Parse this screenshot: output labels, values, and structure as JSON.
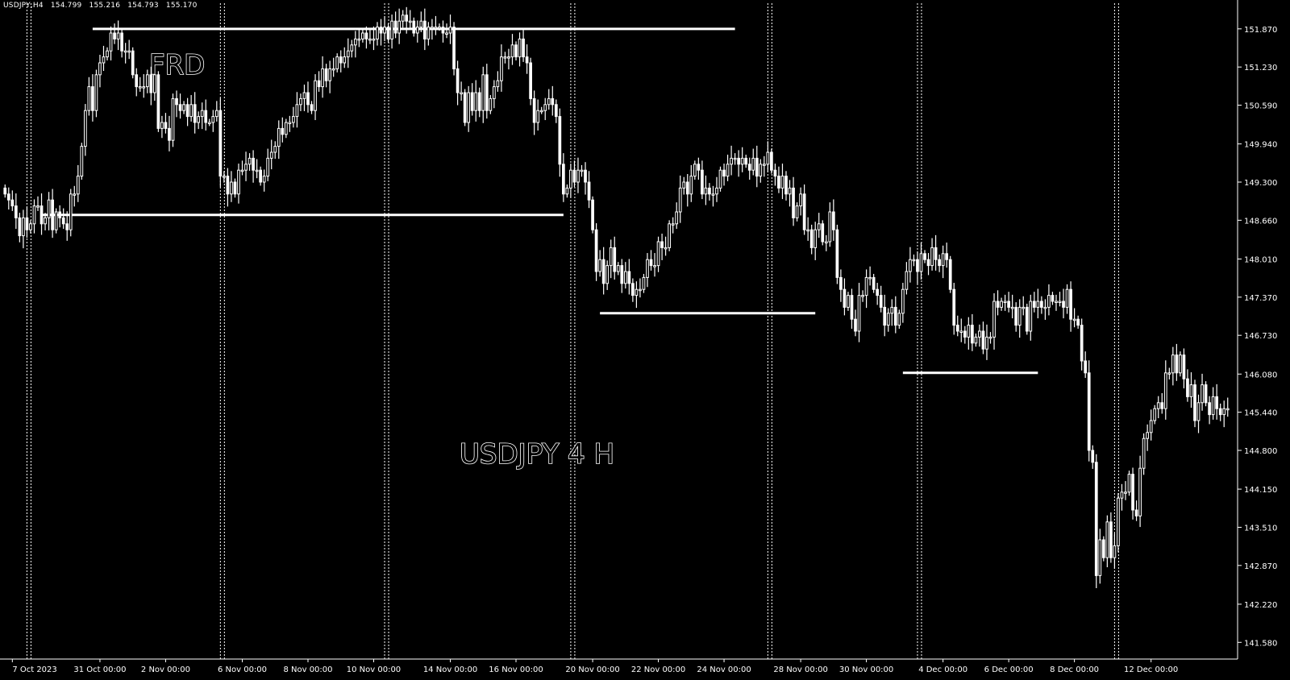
{
  "header": {
    "symbol": "USDJPY,H4",
    "ohlc": [
      "154.799",
      "155.216",
      "154.793",
      "155.170"
    ]
  },
  "annotations": {
    "label_frd": "FRD",
    "label_main": "USDJPY 4 H"
  },
  "colors": {
    "background": "#000000",
    "foreground": "#ffffff",
    "grid_dotted": "#ffffff"
  },
  "chart_data": {
    "type": "candlestick",
    "title": "",
    "timeframe": "H4",
    "ylim": [
      141.3,
      152.3
    ],
    "y_ticks": [
      151.87,
      151.23,
      150.59,
      149.94,
      149.3,
      148.66,
      148.01,
      147.37,
      146.73,
      146.08,
      145.44,
      144.8,
      144.15,
      143.51,
      142.87,
      142.22,
      141.58
    ],
    "y_tick_labels": [
      "151.870",
      "151.230",
      "150.590",
      "149.940",
      "149.300",
      "148.660",
      "148.010",
      "147.370",
      "146.730",
      "146.080",
      "145.440",
      "144.800",
      "144.150",
      "143.510",
      "142.870",
      "142.220",
      "141.580"
    ],
    "x_tick_labels": [
      "7 Oct 2023",
      "31 Oct 00:00",
      "2 Nov 00:00",
      "6 Nov 00:00",
      "8 Nov 00:00",
      "10 Nov 00:00",
      "14 Nov 00:00",
      "16 Nov 00:00",
      "20 Nov 00:00",
      "22 Nov 00:00",
      "24 Nov 00:00",
      "28 Nov 00:00",
      "30 Nov 00:00",
      "4 Dec 00:00",
      "6 Dec 00:00",
      "8 Dec 00:00",
      "12 Dec 00:00"
    ],
    "x_tick_index": [
      2,
      26,
      44,
      65,
      83,
      101,
      122,
      140,
      161,
      179,
      197,
      218,
      236,
      257,
      275,
      293,
      314
    ],
    "week_separators_index": [
      6,
      59,
      104,
      155,
      209,
      250,
      304
    ],
    "horizontal_levels": [
      {
        "price": 151.87,
        "from_index": 24,
        "to_index": 200
      },
      {
        "price": 148.75,
        "from_index": 10,
        "to_index": 153
      },
      {
        "price": 147.1,
        "from_index": 163,
        "to_index": 222
      },
      {
        "price": 146.1,
        "from_index": 246,
        "to_index": 283
      }
    ],
    "closes": [
      149.1,
      149.0,
      148.9,
      148.7,
      148.4,
      148.7,
      148.5,
      148.6,
      148.9,
      148.9,
      148.6,
      148.7,
      149.0,
      148.5,
      148.8,
      148.7,
      148.6,
      148.5,
      149.1,
      149.1,
      149.4,
      149.9,
      150.5,
      150.9,
      150.5,
      151.1,
      151.3,
      151.4,
      151.5,
      151.8,
      151.7,
      151.8,
      151.5,
      151.5,
      151.5,
      151.1,
      150.9,
      150.9,
      150.9,
      151.1,
      150.8,
      151.1,
      150.2,
      150.3,
      150.2,
      150.0,
      150.7,
      150.6,
      150.5,
      150.6,
      150.4,
      150.6,
      150.3,
      150.4,
      150.5,
      150.3,
      150.3,
      150.4,
      150.5,
      149.4,
      149.4,
      149.1,
      149.3,
      149.1,
      149.5,
      149.5,
      149.6,
      149.7,
      149.5,
      149.5,
      149.3,
      149.4,
      149.7,
      149.8,
      149.9,
      150.2,
      150.1,
      150.3,
      150.3,
      150.4,
      150.6,
      150.7,
      150.8,
      150.6,
      150.5,
      151.0,
      150.9,
      151.2,
      151.0,
      151.2,
      151.2,
      151.4,
      151.3,
      151.4,
      151.5,
      151.6,
      151.7,
      151.7,
      151.8,
      151.7,
      151.7,
      151.7,
      151.9,
      151.8,
      151.9,
      151.7,
      152.0,
      151.8,
      152.0,
      152.1,
      152.0,
      152.0,
      151.8,
      151.9,
      152.0,
      151.7,
      151.9,
      151.9,
      151.9,
      151.9,
      151.8,
      151.8,
      151.9,
      151.2,
      150.8,
      150.8,
      150.3,
      150.8,
      150.5,
      150.8,
      150.5,
      151.1,
      150.5,
      150.7,
      150.9,
      151.0,
      151.4,
      151.4,
      151.4,
      151.6,
      151.4,
      151.7,
      151.4,
      151.3,
      150.7,
      150.3,
      150.5,
      150.5,
      150.6,
      150.7,
      150.6,
      150.4,
      149.6,
      149.1,
      149.2,
      149.5,
      149.3,
      149.5,
      149.5,
      149.3,
      149.0,
      148.5,
      147.8,
      148.0,
      147.6,
      147.9,
      148.2,
      147.8,
      147.9,
      147.6,
      147.8,
      147.6,
      147.4,
      147.5,
      147.5,
      147.7,
      148.0,
      147.9,
      147.9,
      148.3,
      148.2,
      148.2,
      148.6,
      148.6,
      148.8,
      149.2,
      149.3,
      149.1,
      149.4,
      149.6,
      149.5,
      149.1,
      149.2,
      149.1,
      149.1,
      149.2,
      149.5,
      149.4,
      149.6,
      149.7,
      149.7,
      149.6,
      149.7,
      149.6,
      149.5,
      149.7,
      149.4,
      149.6,
      149.6,
      149.8,
      149.5,
      149.4,
      149.2,
      149.4,
      149.1,
      149.2,
      148.7,
      148.9,
      149.1,
      148.5,
      148.5,
      148.2,
      148.5,
      148.6,
      148.3,
      148.3,
      148.8,
      148.5,
      147.7,
      147.5,
      147.2,
      147.4,
      147.0,
      146.8,
      147.4,
      147.4,
      147.7,
      147.7,
      147.5,
      147.4,
      147.2,
      146.9,
      147.1,
      147.2,
      146.9,
      147.1,
      147.5,
      147.8,
      148.0,
      148.0,
      147.8,
      148.1,
      148.0,
      147.9,
      148.2,
      148.0,
      147.9,
      148.1,
      148.0,
      147.5,
      146.9,
      146.8,
      146.8,
      146.7,
      146.9,
      146.6,
      146.7,
      146.8,
      146.5,
      146.7,
      146.7,
      147.3,
      147.2,
      147.3,
      147.3,
      147.2,
      147.2,
      146.9,
      147.2,
      147.2,
      146.8,
      147.3,
      147.2,
      147.3,
      147.2,
      147.2,
      147.4,
      147.3,
      147.3,
      147.3,
      147.2,
      147.5,
      147.0,
      147.0,
      146.9,
      146.3,
      146.1,
      144.8,
      144.6,
      142.7,
      143.3,
      143.0,
      143.6,
      143.0,
      143.2,
      144.0,
      144.1,
      144.1,
      144.4,
      143.8,
      143.7,
      144.5,
      145.0,
      145.1,
      145.3,
      145.5,
      145.6,
      145.5,
      146.1,
      146.1,
      146.4,
      146.1,
      146.4,
      146.0,
      145.7,
      145.9,
      145.3,
      145.6,
      145.9,
      145.6,
      145.4,
      145.7,
      145.5,
      145.4,
      145.5,
      145.5
    ]
  }
}
